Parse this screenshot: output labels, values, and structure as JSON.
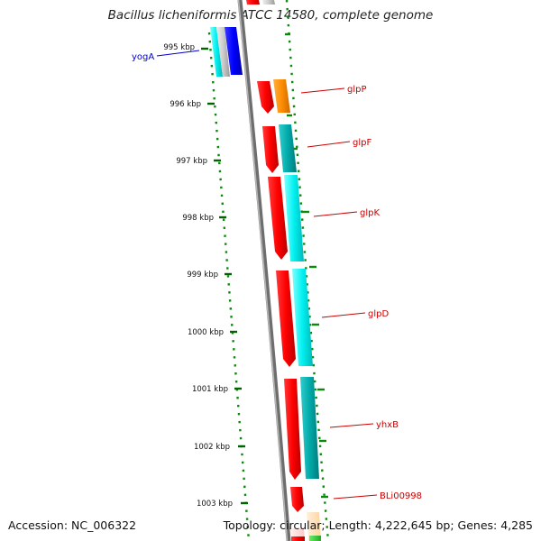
{
  "title": "Bacillus licheniformis ATCC 14580, complete genome",
  "footer": {
    "accession": "Accession: NC_006322",
    "summary": "Topology: circular; Length: 4,222,645 bp; Genes: 4,285"
  },
  "ticks": [
    "995 kbp",
    "996 kbp",
    "997 kbp",
    "998 kbp",
    "999 kbp",
    "1000 kbp",
    "1001 kbp",
    "1002 kbp",
    "1003 kbp"
  ],
  "genes": [
    {
      "name": "yogA",
      "color": "#0000cc"
    },
    {
      "name": "glpP",
      "color": "#cc0000"
    },
    {
      "name": "glpF",
      "color": "#cc0000"
    },
    {
      "name": "glpK",
      "color": "#cc0000"
    },
    {
      "name": "glpD",
      "color": "#cc0000"
    },
    {
      "name": "yhxB",
      "color": "#cc0000"
    },
    {
      "name": "BLi00998",
      "color": "#cc0000"
    }
  ],
  "colors": {
    "gene_forward": "#ff0000",
    "gene_reverse": "#0000ff",
    "cog_cyan": "#00ffff",
    "cog_teal": "#00b0b0",
    "cog_orange": "#ff8c00",
    "backbone": "#808080",
    "gc_dots": "#008000"
  }
}
